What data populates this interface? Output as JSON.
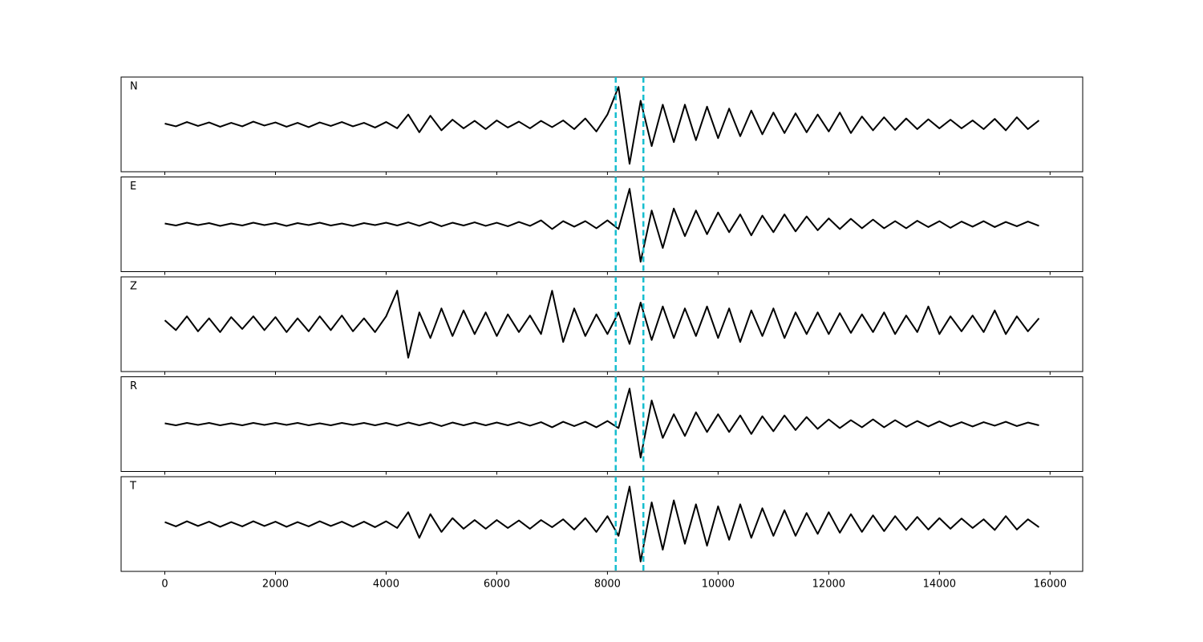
{
  "chart_data": {
    "type": "line",
    "subplots": true,
    "x": [
      0,
      200,
      400,
      600,
      800,
      1000,
      1200,
      1400,
      1600,
      1800,
      2000,
      2200,
      2400,
      2600,
      2800,
      3000,
      3200,
      3400,
      3600,
      3800,
      4000,
      4200,
      4400,
      4600,
      4800,
      5000,
      5200,
      5400,
      5600,
      5800,
      6000,
      6200,
      6400,
      6600,
      6800,
      7000,
      7200,
      7400,
      7600,
      7800,
      8000,
      8200,
      8400,
      8600,
      8800,
      9000,
      9200,
      9400,
      9600,
      9800,
      10000,
      10200,
      10400,
      10600,
      10800,
      11000,
      11200,
      11400,
      11600,
      11800,
      12000,
      12200,
      12400,
      12600,
      12800,
      13000,
      13200,
      13400,
      13600,
      13800,
      14000,
      14200,
      14400,
      14600,
      14800,
      15000,
      15200,
      15400,
      15600,
      15800
    ],
    "xlim": [
      -790,
      16590
    ],
    "xticks": [
      0,
      2000,
      4000,
      6000,
      8000,
      10000,
      12000,
      14000,
      16000
    ],
    "ylim": [
      -1.2,
      1.2
    ],
    "vlines": {
      "values": [
        8150,
        8650
      ],
      "color": "#17becf"
    },
    "series": [
      {
        "name": "N",
        "color": "#000000",
        "values": [
          0.02,
          -0.05,
          0.06,
          -0.04,
          0.05,
          -0.06,
          0.04,
          -0.05,
          0.07,
          -0.03,
          0.05,
          -0.06,
          0.04,
          -0.07,
          0.05,
          -0.04,
          0.06,
          -0.05,
          0.04,
          -0.08,
          0.06,
          -0.1,
          0.25,
          -0.2,
          0.22,
          -0.15,
          0.12,
          -0.1,
          0.09,
          -0.12,
          0.1,
          -0.08,
          0.07,
          -0.1,
          0.09,
          -0.07,
          0.1,
          -0.12,
          0.15,
          -0.18,
          0.25,
          0.95,
          -1.0,
          0.6,
          -0.55,
          0.5,
          -0.45,
          0.5,
          -0.4,
          0.45,
          -0.35,
          0.4,
          -0.3,
          0.35,
          -0.25,
          0.3,
          -0.22,
          0.28,
          -0.2,
          0.25,
          -0.18,
          0.3,
          -0.22,
          0.2,
          -0.15,
          0.18,
          -0.14,
          0.15,
          -0.12,
          0.13,
          -0.1,
          0.12,
          -0.1,
          0.1,
          -0.12,
          0.14,
          -0.15,
          0.18,
          -0.12,
          0.1
        ]
      },
      {
        "name": "E",
        "color": "#000000",
        "values": [
          0.02,
          -0.03,
          0.04,
          -0.02,
          0.03,
          -0.04,
          0.02,
          -0.03,
          0.04,
          -0.02,
          0.03,
          -0.04,
          0.03,
          -0.02,
          0.04,
          -0.03,
          0.02,
          -0.04,
          0.03,
          -0.02,
          0.04,
          -0.03,
          0.05,
          -0.04,
          0.06,
          -0.05,
          0.04,
          -0.03,
          0.05,
          -0.04,
          0.04,
          -0.05,
          0.06,
          -0.04,
          0.1,
          -0.12,
          0.08,
          -0.06,
          0.08,
          -0.1,
          0.1,
          -0.12,
          0.9,
          -0.95,
          0.35,
          -0.6,
          0.4,
          -0.3,
          0.35,
          -0.25,
          0.3,
          -0.2,
          0.25,
          -0.28,
          0.22,
          -0.2,
          0.25,
          -0.18,
          0.2,
          -0.15,
          0.15,
          -0.12,
          0.14,
          -0.1,
          0.12,
          -0.1,
          0.08,
          -0.1,
          0.09,
          -0.07,
          0.08,
          -0.09,
          0.07,
          -0.06,
          0.08,
          -0.07,
          0.06,
          -0.05,
          0.07,
          -0.04
        ]
      },
      {
        "name": "Z",
        "color": "#000000",
        "values": [
          0.1,
          -0.15,
          0.2,
          -0.18,
          0.15,
          -0.2,
          0.18,
          -0.12,
          0.2,
          -0.15,
          0.18,
          -0.2,
          0.15,
          -0.18,
          0.2,
          -0.15,
          0.22,
          -0.18,
          0.15,
          -0.2,
          0.2,
          0.85,
          -0.85,
          0.3,
          -0.35,
          0.4,
          -0.3,
          0.35,
          -0.25,
          0.3,
          -0.3,
          0.25,
          -0.2,
          0.22,
          -0.25,
          0.85,
          -0.45,
          0.4,
          -0.3,
          0.25,
          -0.25,
          0.3,
          -0.5,
          0.55,
          -0.4,
          0.45,
          -0.35,
          0.4,
          -0.3,
          0.45,
          -0.35,
          0.4,
          -0.45,
          0.35,
          -0.3,
          0.4,
          -0.35,
          0.3,
          -0.25,
          0.3,
          -0.25,
          0.28,
          -0.22,
          0.25,
          -0.2,
          0.3,
          -0.25,
          0.22,
          -0.2,
          0.45,
          -0.25,
          0.2,
          -0.18,
          0.22,
          -0.2,
          0.35,
          -0.25,
          0.2,
          -0.18,
          0.15
        ]
      },
      {
        "name": "R",
        "color": "#000000",
        "values": [
          0.02,
          -0.03,
          0.03,
          -0.02,
          0.03,
          -0.03,
          0.02,
          -0.03,
          0.03,
          -0.02,
          0.03,
          -0.02,
          0.03,
          -0.03,
          0.02,
          -0.03,
          0.03,
          -0.02,
          0.03,
          -0.03,
          0.03,
          -0.04,
          0.04,
          -0.03,
          0.04,
          -0.05,
          0.04,
          -0.03,
          0.04,
          -0.03,
          0.04,
          -0.03,
          0.05,
          -0.04,
          0.05,
          -0.08,
          0.06,
          -0.05,
          0.06,
          -0.08,
          0.08,
          -0.1,
          0.9,
          -0.85,
          0.6,
          -0.35,
          0.25,
          -0.3,
          0.3,
          -0.2,
          0.25,
          -0.2,
          0.22,
          -0.25,
          0.2,
          -0.18,
          0.22,
          -0.15,
          0.18,
          -0.12,
          0.12,
          -0.1,
          0.1,
          -0.08,
          0.12,
          -0.08,
          0.1,
          -0.07,
          0.08,
          -0.06,
          0.07,
          -0.06,
          0.05,
          -0.06,
          0.05,
          -0.04,
          0.06,
          -0.05,
          0.04,
          -0.03
        ]
      },
      {
        "name": "T",
        "color": "#000000",
        "values": [
          0.05,
          -0.06,
          0.07,
          -0.05,
          0.06,
          -0.07,
          0.05,
          -0.06,
          0.07,
          -0.05,
          0.06,
          -0.07,
          0.05,
          -0.06,
          0.07,
          -0.05,
          0.06,
          -0.07,
          0.06,
          -0.08,
          0.07,
          -0.1,
          0.3,
          -0.35,
          0.25,
          -0.2,
          0.15,
          -0.12,
          0.1,
          -0.12,
          0.1,
          -0.1,
          0.09,
          -0.12,
          0.1,
          -0.08,
          0.12,
          -0.14,
          0.15,
          -0.2,
          0.2,
          -0.3,
          0.95,
          -0.95,
          0.55,
          -0.65,
          0.6,
          -0.5,
          0.5,
          -0.55,
          0.45,
          -0.4,
          0.5,
          -0.35,
          0.4,
          -0.3,
          0.35,
          -0.3,
          0.28,
          -0.25,
          0.3,
          -0.22,
          0.25,
          -0.2,
          0.22,
          -0.18,
          0.2,
          -0.15,
          0.18,
          -0.14,
          0.15,
          -0.12,
          0.14,
          -0.1,
          0.12,
          -0.15,
          0.2,
          -0.14,
          0.12,
          -0.08
        ]
      }
    ]
  }
}
